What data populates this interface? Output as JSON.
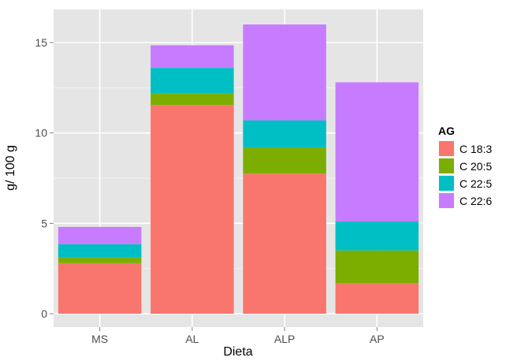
{
  "chart_data": {
    "type": "bar",
    "stacked": true,
    "xlabel": "Dieta",
    "ylabel": "g/ 100 g",
    "categories": [
      "MS",
      "AL",
      "ALP",
      "AP"
    ],
    "ylim": [
      0,
      16.8
    ],
    "yticks": [
      0,
      5,
      10,
      15
    ],
    "grid": true,
    "legend": {
      "title": "AG",
      "position": "right"
    },
    "series": [
      {
        "name": "C 18:3",
        "color": "#F8766D",
        "values": [
          2.8,
          11.55,
          7.75,
          1.7
        ]
      },
      {
        "name": "C 20:5",
        "color": "#7CAE00",
        "values": [
          0.3,
          0.65,
          1.45,
          1.8
        ]
      },
      {
        "name": "C 22:5",
        "color": "#00BFC4",
        "values": [
          0.75,
          1.4,
          1.5,
          1.6
        ]
      },
      {
        "name": "C 22:6",
        "color": "#C77CFF",
        "values": [
          0.95,
          1.25,
          5.3,
          7.7
        ]
      }
    ],
    "panel_background": "#E5E5E5",
    "grid_color": "#FFFFFF"
  }
}
